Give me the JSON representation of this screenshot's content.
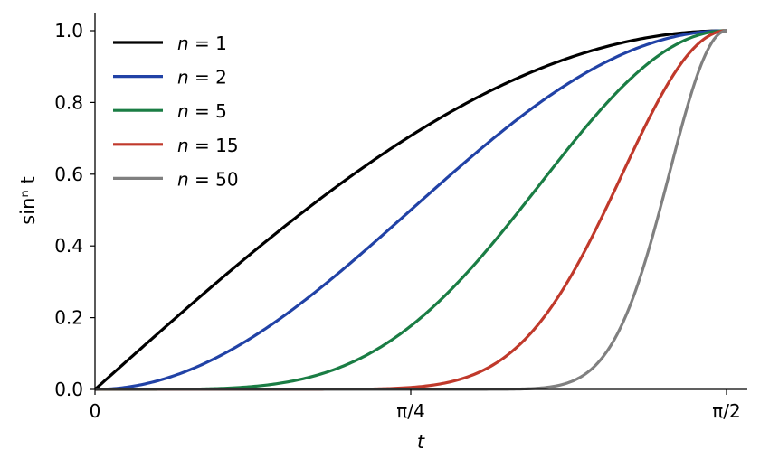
{
  "chart_data": {
    "type": "line",
    "title": "",
    "xlabel": "t",
    "ylabel": "sinⁿ t",
    "xlim": [
      0,
      1.5708
    ],
    "ylim": [
      0,
      1.05
    ],
    "x_ticks": [
      {
        "value": 0,
        "label": "0"
      },
      {
        "value": 0.7854,
        "label": "π/4"
      },
      {
        "value": 1.5708,
        "label": "π/2"
      }
    ],
    "y_ticks": [
      {
        "value": 0.0,
        "label": "0.0"
      },
      {
        "value": 0.2,
        "label": "0.2"
      },
      {
        "value": 0.4,
        "label": "0.4"
      },
      {
        "value": 0.6,
        "label": "0.6"
      },
      {
        "value": 0.8,
        "label": "0.8"
      },
      {
        "value": 1.0,
        "label": "1.0"
      }
    ],
    "grid": false,
    "legend_position": "upper-left",
    "x": [
      0,
      0.0785,
      0.1571,
      0.2356,
      0.3142,
      0.3927,
      0.4712,
      0.5498,
      0.6283,
      0.7069,
      0.7854,
      0.8639,
      0.9425,
      1.021,
      1.0996,
      1.1781,
      1.2566,
      1.3352,
      1.4137,
      1.4923,
      1.5708
    ],
    "series": [
      {
        "name": "n = 1",
        "n_value": "1",
        "color": "#000000",
        "values": [
          0.0,
          0.0785,
          0.1564,
          0.2334,
          0.309,
          0.3827,
          0.454,
          0.5225,
          0.5878,
          0.6494,
          0.7071,
          0.7604,
          0.809,
          0.8526,
          0.891,
          0.9239,
          0.9511,
          0.9724,
          0.9877,
          0.9969,
          1.0
        ]
      },
      {
        "name": "n = 2",
        "n_value": "2",
        "color": "#2142a6",
        "values": [
          0.0,
          0.0062,
          0.0245,
          0.0545,
          0.0955,
          0.1464,
          0.2061,
          0.273,
          0.3455,
          0.4218,
          0.5,
          0.5782,
          0.6545,
          0.727,
          0.7939,
          0.8536,
          0.9045,
          0.9455,
          0.9755,
          0.9938,
          1.0
        ]
      },
      {
        "name": "n = 5",
        "n_value": "5",
        "color": "#1a7d44",
        "values": [
          0.0,
          0.0,
          0.0001,
          0.0007,
          0.0028,
          0.0082,
          0.0193,
          0.0389,
          0.0702,
          0.1156,
          0.1768,
          0.2536,
          0.3466,
          0.4513,
          0.5618,
          0.6733,
          0.7781,
          0.8692,
          0.9401,
          0.9846,
          1.0
        ]
      },
      {
        "name": "n = 15",
        "n_value": "15",
        "color": "#c0392b",
        "values": [
          0.0,
          0.0,
          0.0,
          0.0,
          0.0,
          0.0,
          0.0,
          0.0001,
          0.0003,
          0.0015,
          0.0055,
          0.0163,
          0.0416,
          0.0919,
          0.1773,
          0.3053,
          0.4711,
          0.6567,
          0.8306,
          0.9544,
          1.0
        ]
      },
      {
        "name": "n = 50",
        "n_value": "50",
        "color": "#808080",
        "values": [
          0.0,
          0.0,
          0.0,
          0.0,
          0.0,
          0.0,
          0.0,
          0.0,
          0.0,
          0.0,
          0.0,
          0.0,
          0.0,
          0.0003,
          0.0032,
          0.0194,
          0.0815,
          0.2461,
          0.5382,
          0.8568,
          1.0
        ]
      }
    ]
  }
}
